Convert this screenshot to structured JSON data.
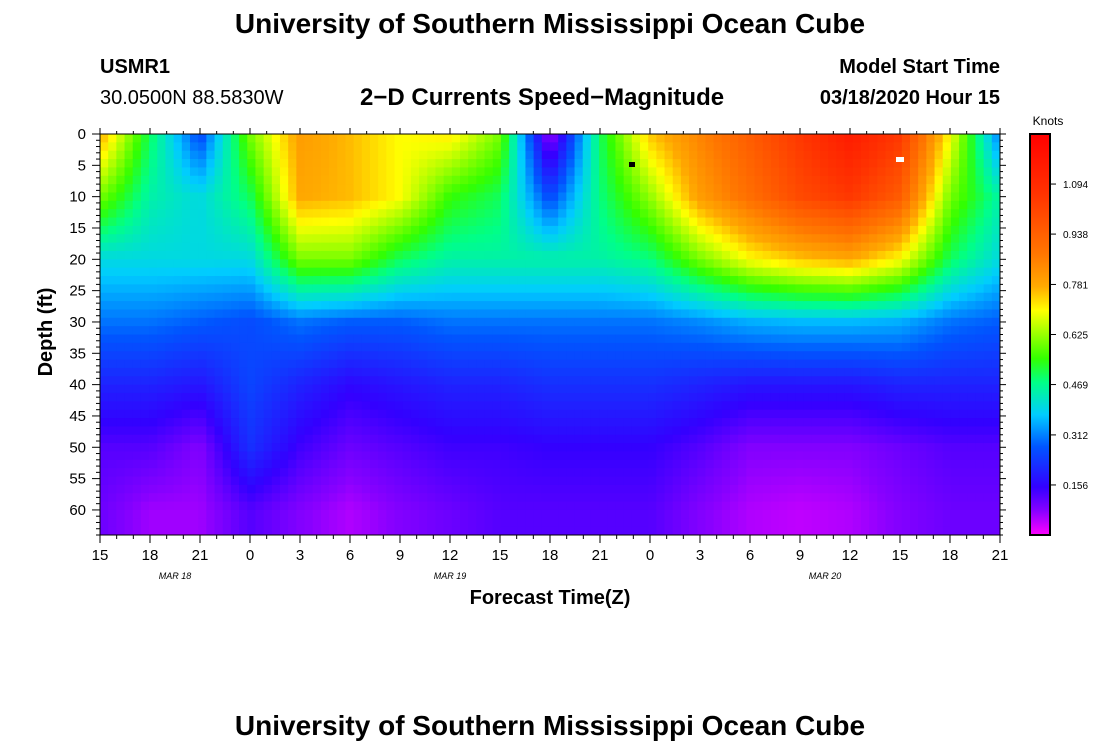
{
  "page": {
    "title_top": "University of Southern Mississippi Ocean Cube",
    "title_bottom": "University of Southern Mississippi Ocean Cube",
    "station_id": "USMR1",
    "station_coords": "30.0500N 88.5830W",
    "model_label": "Model Start Time",
    "model_time": "03/18/2020 Hour 15",
    "subtitle": "2−D Currents Speed−Magnitude"
  },
  "chart_data": {
    "type": "heatmap",
    "title": "2−D Currents Speed−Magnitude",
    "xlabel": "Forecast Time(Z)",
    "ylabel": "Depth (ft)",
    "x_hours_range": [
      0,
      54
    ],
    "y_range": [
      0,
      64
    ],
    "y_inverted": true,
    "x_tick_labels": [
      "15",
      "18",
      "21",
      "0",
      "3",
      "6",
      "9",
      "12",
      "15",
      "18",
      "21",
      "0",
      "3",
      "6",
      "9",
      "12",
      "15",
      "18",
      "21"
    ],
    "y_ticks": [
      0,
      5,
      10,
      15,
      20,
      25,
      30,
      35,
      40,
      45,
      50,
      55,
      60
    ],
    "date_labels": [
      {
        "text": "MAR 18",
        "hour": 4.5
      },
      {
        "text": "MAR 19",
        "hour": 21
      },
      {
        "text": "MAR 20",
        "hour": 43.5
      }
    ],
    "colorbar": {
      "label": "Knots",
      "range": [
        0,
        1.25
      ],
      "tick_values": [
        0.156,
        0.312,
        0.469,
        0.625,
        0.781,
        0.938,
        1.094
      ],
      "tick_labels": [
        "0.156",
        "0.312",
        "0.469",
        "0.625",
        "0.781",
        "0.938",
        "1.094"
      ]
    },
    "approx_speed_profile": {
      "description": "approximate current speed (knots) at sampled forecast hours and depths",
      "hours": [
        0,
        3,
        6,
        9,
        12,
        15,
        18,
        21,
        24,
        27,
        30,
        33,
        36,
        39,
        42,
        45,
        48,
        51,
        54
      ],
      "depths": [
        0,
        10,
        20,
        30,
        40,
        50,
        60
      ],
      "speed": [
        [
          0.78,
          0.6,
          0.4,
          0.3,
          0.2,
          0.12,
          0.1
        ],
        [
          0.5,
          0.45,
          0.4,
          0.3,
          0.2,
          0.12,
          0.06
        ],
        [
          0.25,
          0.4,
          0.4,
          0.28,
          0.18,
          0.08,
          0.06
        ],
        [
          0.6,
          0.5,
          0.4,
          0.26,
          0.25,
          0.22,
          0.12
        ],
        [
          0.8,
          0.78,
          0.6,
          0.3,
          0.2,
          0.14,
          0.08
        ],
        [
          0.76,
          0.76,
          0.6,
          0.28,
          0.16,
          0.1,
          0.05
        ],
        [
          0.7,
          0.7,
          0.5,
          0.28,
          0.18,
          0.12,
          0.08
        ],
        [
          0.72,
          0.55,
          0.45,
          0.3,
          0.2,
          0.14,
          0.1
        ],
        [
          0.6,
          0.5,
          0.45,
          0.3,
          0.2,
          0.14,
          0.12
        ],
        [
          0.05,
          0.25,
          0.45,
          0.3,
          0.22,
          0.15,
          0.12
        ],
        [
          0.5,
          0.48,
          0.45,
          0.3,
          0.22,
          0.15,
          0.12
        ],
        [
          0.75,
          0.62,
          0.48,
          0.3,
          0.22,
          0.15,
          0.12
        ],
        [
          0.85,
          0.8,
          0.6,
          0.32,
          0.2,
          0.12,
          0.08
        ],
        [
          0.95,
          0.9,
          0.7,
          0.35,
          0.18,
          0.08,
          0.05
        ],
        [
          1.05,
          1.0,
          0.75,
          0.36,
          0.18,
          0.08,
          0.04
        ],
        [
          1.15,
          1.05,
          0.78,
          0.36,
          0.18,
          0.08,
          0.05
        ],
        [
          1.05,
          0.95,
          0.7,
          0.35,
          0.2,
          0.1,
          0.08
        ],
        [
          0.7,
          0.6,
          0.5,
          0.3,
          0.2,
          0.12,
          0.1
        ],
        [
          0.3,
          0.45,
          0.4,
          0.28,
          0.2,
          0.12,
          0.1
        ]
      ]
    }
  }
}
